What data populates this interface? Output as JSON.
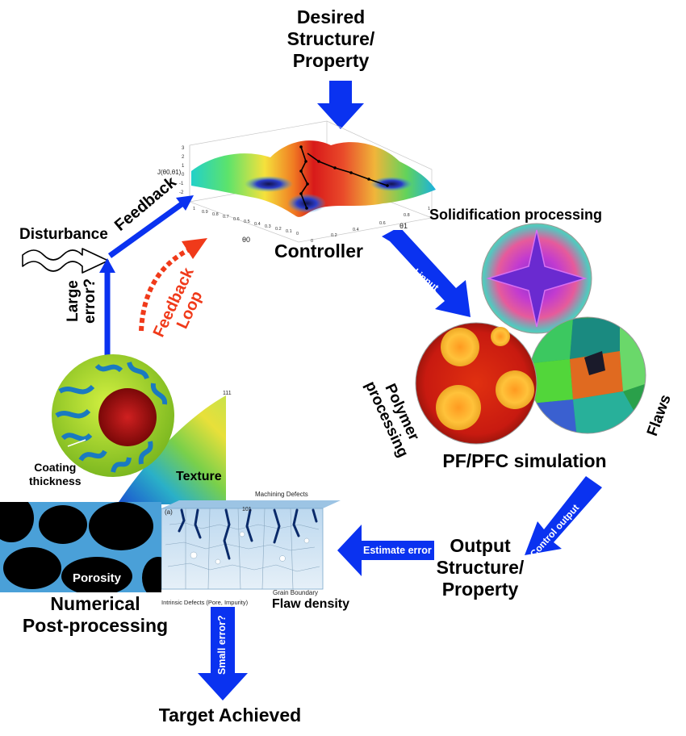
{
  "title": {
    "desired_line1": "Desired",
    "desired_line2": "Structure/",
    "desired_line3": "Property"
  },
  "controller": {
    "label": "Controller",
    "z_axis": "J(θ0,θ1)",
    "x_axis": "θ0",
    "y_axis": "θ1",
    "z_ticks": [
      "3",
      "2",
      "1",
      "0",
      "-1",
      "-2",
      "-3"
    ],
    "x_ticks": [
      "1",
      "0.9",
      "0.8",
      "0.7",
      "0.6",
      "0.5",
      "0.4",
      "0.3",
      "0.2",
      "0.1",
      "0"
    ],
    "y_ticks": [
      "0",
      "0.2",
      "0.4",
      "0.6",
      "0.8",
      "1"
    ]
  },
  "feedback": {
    "disturbance": "Disturbance",
    "feedback": "Feedback",
    "loop_line1": "Feedback",
    "loop_line2": "Loop",
    "large_error_line1": "Large",
    "large_error_line2": "error?"
  },
  "simulation": {
    "solidification": "Solidification processing",
    "polymer_line1": "Polymer",
    "polymer_line2": "processing",
    "flaws": "Flaws",
    "title": "PF/PFC simulation",
    "control_input": "Control input",
    "control_output": "Control output"
  },
  "output": {
    "line1": "Output",
    "line2": "Structure/",
    "line3": "Property",
    "estimate_error": "Estimate error"
  },
  "post": {
    "coating_line1": "Coating",
    "coating_line2": "thickness",
    "texture": "Texture",
    "pole_111": "111",
    "pole_101": "101",
    "porosity": "Porosity",
    "machining_defects": "Machining Defects",
    "intrinsic_defects": "Intrinsic Defects (Pore, Impurity)",
    "grain_boundary": "Grain Boundary",
    "flaw_density": "Flaw density",
    "panel_a": "(a)",
    "numerical_line1": "Numerical",
    "numerical_line2": "Post-processing",
    "small_error": "Small error?",
    "target": "Target Achieved"
  },
  "colors": {
    "arrow_blue": "#0a32f0",
    "loop_red": "#f03a1a",
    "text": "#000000"
  }
}
